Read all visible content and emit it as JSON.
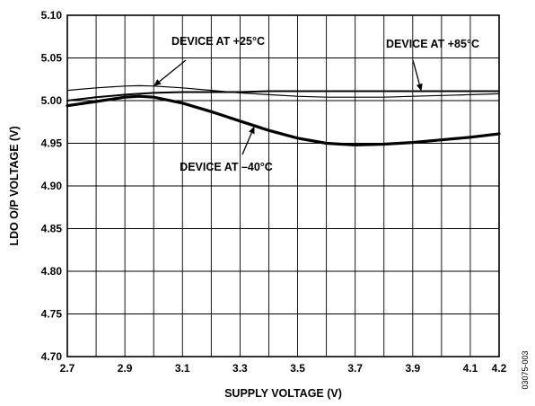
{
  "chart_data": {
    "type": "line",
    "xlabel": "SUPPLY VOLTAGE (V)",
    "ylabel": "LDO O/P VOLTAGE (V)",
    "xlim": [
      2.7,
      4.2
    ],
    "ylim": [
      4.7,
      5.1
    ],
    "x_ticks": [
      2.7,
      2.9,
      3.1,
      3.3,
      3.5,
      3.7,
      3.9,
      4.1,
      4.2
    ],
    "x_tick_labels": [
      "2.7",
      "2.9",
      "3.1",
      "3.3",
      "3.5",
      "3.7",
      "3.9",
      "4.1",
      "4.2"
    ],
    "y_ticks": [
      4.7,
      4.75,
      4.8,
      4.85,
      4.9,
      4.95,
      5.0,
      5.05,
      5.1
    ],
    "y_tick_labels": [
      "4.70",
      "4.75",
      "4.80",
      "4.85",
      "4.90",
      "4.95",
      "5.00",
      "5.05",
      "5.10"
    ],
    "grid": true,
    "series": [
      {
        "x": [
          2.7,
          2.8,
          2.9,
          2.95,
          3.0,
          3.1,
          3.2,
          3.3,
          3.4,
          3.5,
          3.6,
          3.7,
          3.8,
          3.9,
          4.0,
          4.1,
          4.2
        ],
        "y": [
          5.012,
          5.015,
          5.017,
          5.0175,
          5.017,
          5.015,
          5.012,
          5.009,
          5.007,
          5.005,
          5.004,
          5.004,
          5.004,
          5.005,
          5.006,
          5.007,
          5.008
        ],
        "weight": "thin"
      },
      {
        "x": [
          2.7,
          2.8,
          2.9,
          3.0,
          3.1,
          3.2,
          3.3,
          3.4,
          3.5,
          3.6,
          3.7,
          3.8,
          3.9,
          4.0,
          4.1,
          4.2
        ],
        "y": [
          5.0,
          5.004,
          5.007,
          5.009,
          5.01,
          5.01,
          5.01,
          5.011,
          5.011,
          5.011,
          5.011,
          5.011,
          5.011,
          5.011,
          5.011,
          5.011
        ],
        "weight": "medium"
      },
      {
        "x": [
          2.7,
          2.8,
          2.9,
          2.95,
          3.0,
          3.1,
          3.2,
          3.3,
          3.4,
          3.5,
          3.6,
          3.7,
          3.8,
          3.9,
          4.0,
          4.1,
          4.2
        ],
        "y": [
          4.994,
          4.999,
          5.004,
          5.005,
          5.004,
          4.997,
          4.987,
          4.976,
          4.965,
          4.956,
          4.95,
          4.948,
          4.949,
          4.951,
          4.954,
          4.957,
          4.961
        ],
        "weight": "thick"
      }
    ],
    "annotations": [
      {
        "text": "DEVICE AT +25°C",
        "arrow_to": {
          "x": 3.0,
          "y": 5.017
        }
      },
      {
        "text": "DEVICE AT +85°C",
        "arrow_to": {
          "x": 3.93,
          "y": 5.011
        }
      },
      {
        "text": "DEVICE AT –40°C",
        "arrow_to": {
          "x": 3.35,
          "y": 4.97
        }
      }
    ]
  },
  "figure_id": "03075-003"
}
